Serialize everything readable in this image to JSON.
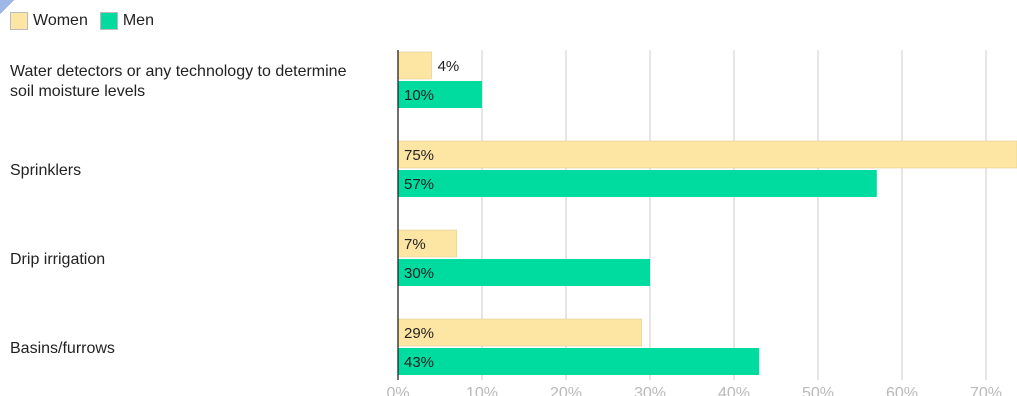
{
  "legend": {
    "items": [
      {
        "label": "Women",
        "color": "#fde5a3"
      },
      {
        "label": "Men",
        "color": "#00dba0"
      }
    ]
  },
  "chart_data": {
    "type": "bar",
    "orientation": "horizontal",
    "categories": [
      "Water detectors or any technology to determine soil moisture levels",
      "Sprinklers",
      "Drip irrigation",
      "Basins/furrows"
    ],
    "series": [
      {
        "name": "Women",
        "values": [
          4,
          75,
          7,
          29
        ],
        "labels": [
          "4%",
          "75%",
          "7%",
          "29%"
        ],
        "color": "#fde5a3"
      },
      {
        "name": "Men",
        "values": [
          10,
          57,
          30,
          43
        ],
        "labels": [
          "10%",
          "57%",
          "30%",
          "43%"
        ],
        "color": "#00dba0"
      }
    ],
    "xticks": [
      "0%",
      "10%",
      "20%",
      "30%",
      "40%",
      "50%",
      "60%",
      "70%"
    ],
    "xlim": [
      0,
      74
    ],
    "grid": true,
    "legend_position": "top-left",
    "title": "",
    "xlabel": "",
    "ylabel": ""
  }
}
